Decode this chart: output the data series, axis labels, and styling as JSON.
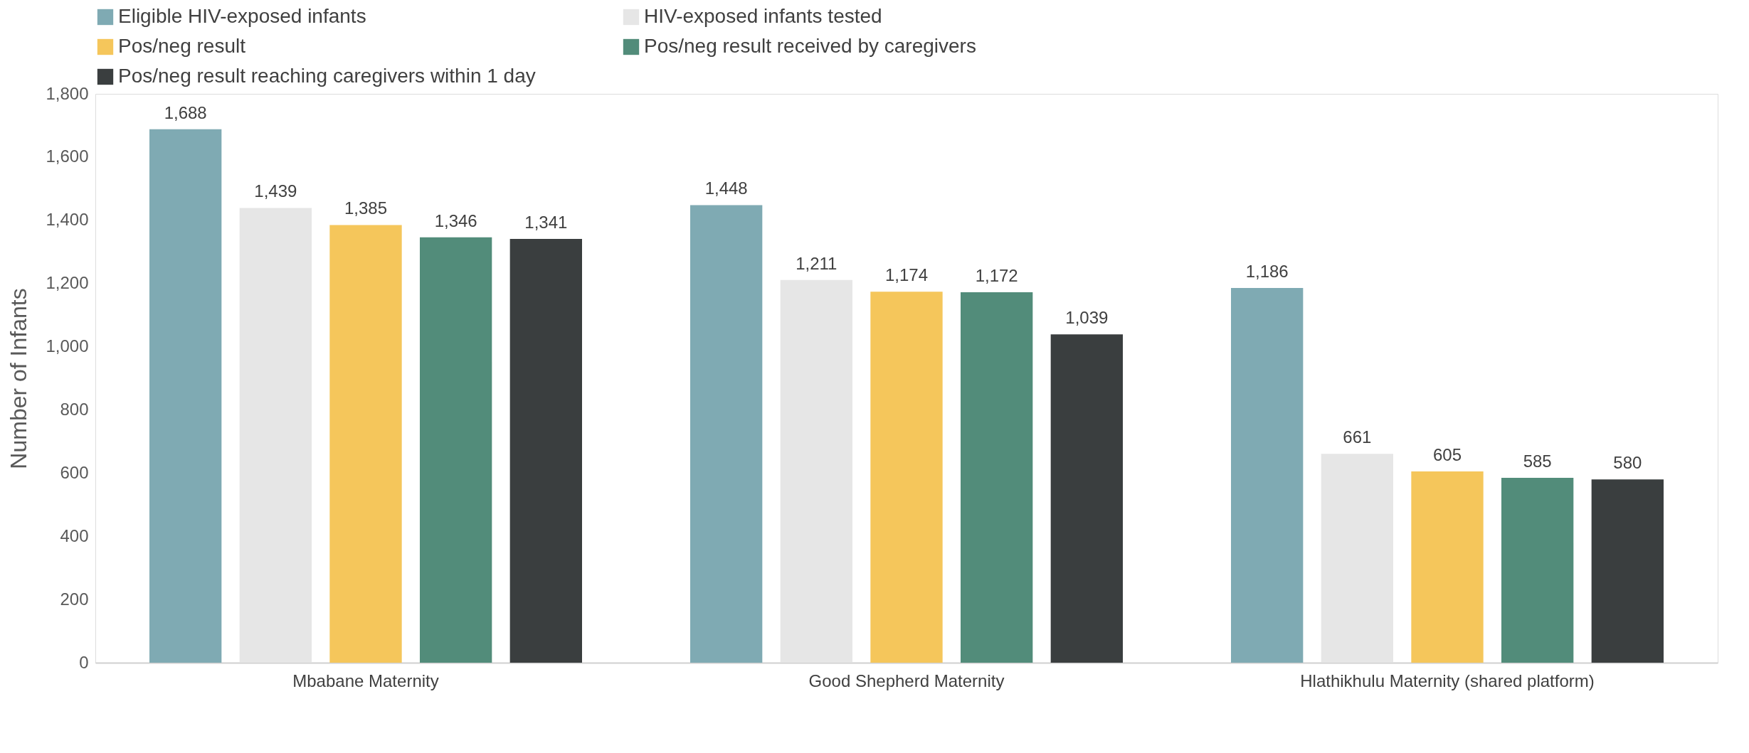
{
  "chart_data": {
    "type": "bar",
    "ylabel": "Number of Infants",
    "categories": [
      "Mbabane Maternity",
      "Good Shepherd Maternity",
      "Hlathikhulu Maternity (shared platform)"
    ],
    "series": [
      {
        "name": "Eligible HIV-exposed infants",
        "color": "#7faab3",
        "values": [
          1688,
          1448,
          1186
        ],
        "value_labels": [
          "1,688",
          "1,448",
          "1,186"
        ]
      },
      {
        "name": "HIV-exposed infants tested",
        "color": "#e6e6e6",
        "values": [
          1439,
          1211,
          661
        ],
        "value_labels": [
          "1,439",
          "1,211",
          "661"
        ]
      },
      {
        "name": "Pos/neg result",
        "color": "#f5c65b",
        "values": [
          1385,
          1174,
          605
        ],
        "value_labels": [
          "1,385",
          "1,174",
          "605"
        ]
      },
      {
        "name": "Pos/neg result received by caregivers",
        "color": "#528c7a",
        "values": [
          1346,
          1172,
          585
        ],
        "value_labels": [
          "1,346",
          "1,172",
          "585"
        ]
      },
      {
        "name": "Pos/neg result reaching caregivers within 1 day",
        "color": "#3a3e3f",
        "values": [
          1341,
          1039,
          580
        ],
        "value_labels": [
          "1,341",
          "1,039",
          "580"
        ]
      }
    ],
    "ylim": [
      0,
      1800
    ],
    "yticks": [
      0,
      200,
      400,
      600,
      800,
      {
        "value": 1000,
        "label": "1,000"
      },
      {
        "value": 1200,
        "label": "1,200"
      },
      {
        "value": 1400,
        "label": "1,400"
      },
      {
        "value": 1600,
        "label": "1,600"
      },
      {
        "value": 1800,
        "label": "1,800"
      }
    ],
    "grid": false,
    "legend": "top"
  }
}
